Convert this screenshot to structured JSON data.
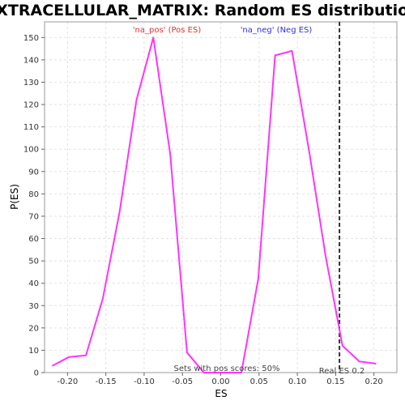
{
  "chart_data": {
    "type": "line",
    "title": "EXTRACELLULAR_MATRIX: Random ES distribution",
    "xlabel": "ES",
    "ylabel": "P(ES)",
    "xlim": [
      -0.23,
      0.23
    ],
    "ylim": [
      0,
      157
    ],
    "x_ticks": [
      -0.2,
      -0.15,
      -0.1,
      -0.05,
      0.0,
      0.05,
      0.1,
      0.15,
      0.2
    ],
    "x_tick_labels": [
      "-0.20",
      "-0.15",
      "-0.10",
      "-0.05",
      "0.00",
      "0.05",
      "0.10",
      "0.15",
      "0.20"
    ],
    "y_ticks": [
      0,
      10,
      20,
      30,
      40,
      50,
      60,
      70,
      80,
      90,
      100,
      110,
      120,
      130,
      140,
      150
    ],
    "grid": true,
    "series": [
      {
        "color": "#ff33ff",
        "x": [
          -0.22,
          -0.198,
          -0.176,
          -0.154,
          -0.132,
          -0.11,
          -0.088,
          -0.066,
          -0.044,
          -0.022,
          0.0,
          0.027,
          0.049,
          0.071,
          0.093,
          0.115,
          0.137,
          0.159,
          0.181,
          0.203
        ],
        "y": [
          3,
          7,
          7.7,
          33,
          72,
          122,
          150,
          98,
          9,
          0,
          0,
          0,
          42,
          142,
          144,
          100,
          52,
          12,
          5,
          4
        ]
      }
    ],
    "labels": {
      "pos": {
        "text": "'na_pos' (Pos ES)",
        "color": "#e03030"
      },
      "neg": {
        "text": "'na_neg' (Neg ES)",
        "color": "#3030e0"
      },
      "sets_note": "Sets with pos scores: 50%",
      "real_es": "Real ES 0.2"
    },
    "real_es_value": 0.155
  }
}
